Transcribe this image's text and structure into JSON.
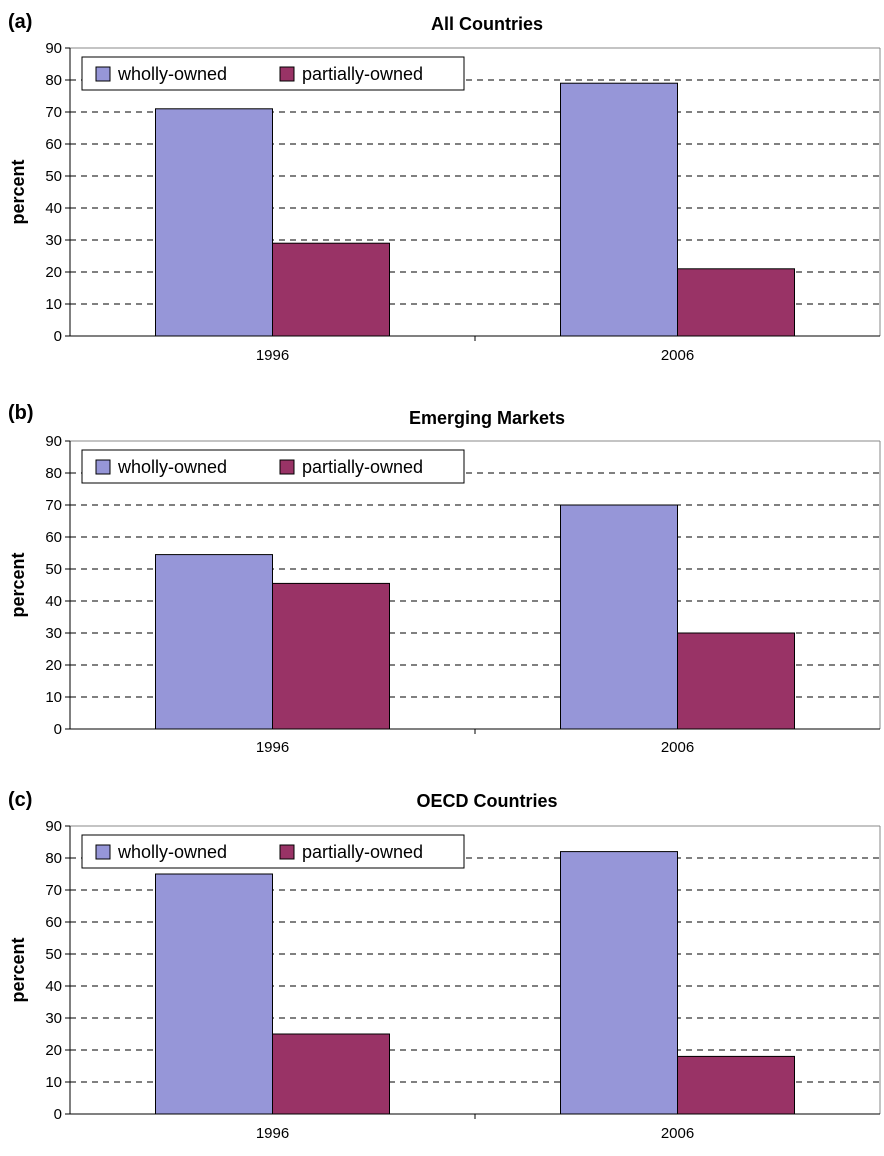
{
  "chart_data": [
    {
      "type": "bar",
      "panel_label": "(a)",
      "title": "All Countries",
      "ylabel": "percent",
      "xlabel": "",
      "categories": [
        "1996",
        "2006"
      ],
      "series": [
        {
          "name": "wholly-owned",
          "values": [
            71,
            79
          ],
          "color": "#9696d8"
        },
        {
          "name": "partially-owned",
          "values": [
            29,
            21
          ],
          "color": "#993366"
        }
      ],
      "ylim": [
        0,
        90
      ],
      "yticks": [
        0,
        10,
        20,
        30,
        40,
        50,
        60,
        70,
        80,
        90
      ],
      "grid": "dashed horizontal",
      "legend": "top-left"
    },
    {
      "type": "bar",
      "panel_label": "(b)",
      "title": "Emerging Markets",
      "ylabel": "percent",
      "xlabel": "",
      "categories": [
        "1996",
        "2006"
      ],
      "series": [
        {
          "name": "wholly-owned",
          "values": [
            54.5,
            70
          ],
          "color": "#9696d8"
        },
        {
          "name": "partially-owned",
          "values": [
            45.5,
            30
          ],
          "color": "#993366"
        }
      ],
      "ylim": [
        0,
        90
      ],
      "yticks": [
        0,
        10,
        20,
        30,
        40,
        50,
        60,
        70,
        80,
        90
      ],
      "grid": "dashed horizontal",
      "legend": "top-left"
    },
    {
      "type": "bar",
      "panel_label": "(c)",
      "title": "OECD Countries",
      "ylabel": "percent",
      "xlabel": "",
      "categories": [
        "1996",
        "2006"
      ],
      "series": [
        {
          "name": "wholly-owned",
          "values": [
            75,
            82
          ],
          "color": "#9696d8"
        },
        {
          "name": "partially-owned",
          "values": [
            25,
            18
          ],
          "color": "#993366"
        }
      ],
      "ylim": [
        0,
        90
      ],
      "yticks": [
        0,
        10,
        20,
        30,
        40,
        50,
        60,
        70,
        80,
        90
      ],
      "grid": "dashed horizontal",
      "legend": "top-left"
    }
  ]
}
